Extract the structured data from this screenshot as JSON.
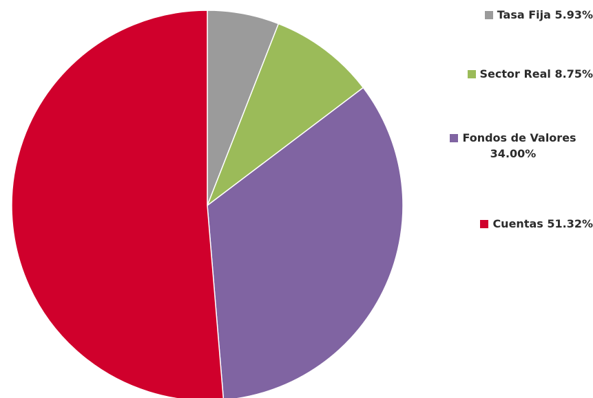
{
  "chart_data": {
    "type": "pie",
    "title": "",
    "slices": [
      {
        "name": "Tasa Fija",
        "value": 5.93,
        "label": "5.93%",
        "color": "#9b9b9b"
      },
      {
        "name": "Sector Real",
        "value": 8.75,
        "label": "8.75%",
        "color": "#9bbb59"
      },
      {
        "name": "Fondos de Valores",
        "value": 34.0,
        "label": "34.00%",
        "color": "#8064a2"
      },
      {
        "name": "Cuentas",
        "value": 51.32,
        "label": "51.32%",
        "color": "#d0002c"
      }
    ],
    "legend_position": "right",
    "start_from": "top",
    "direction": "clockwise"
  },
  "legend": {
    "items": [
      {
        "text": "Tasa Fija 5.93%",
        "color": "#9b9b9b"
      },
      {
        "text": "Sector Real 8.75%",
        "color": "#9bbb59"
      },
      {
        "text_line1": "Fondos de Valores",
        "text_line2": "34.00%",
        "color": "#8064a2"
      },
      {
        "text": "Cuentas 51.32%",
        "color": "#d0002c"
      }
    ]
  }
}
